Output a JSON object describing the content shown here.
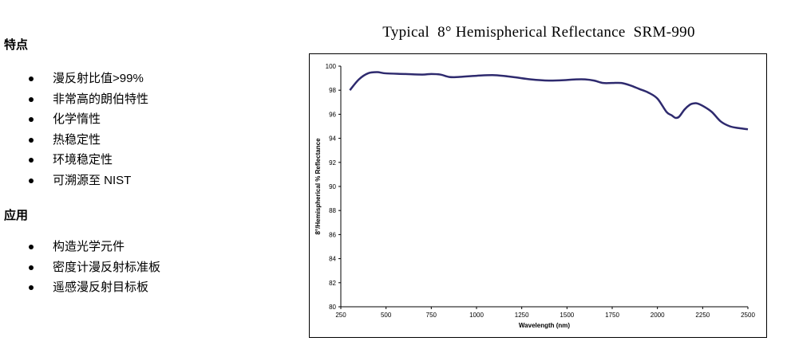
{
  "features": {
    "heading": "特点",
    "items": [
      "漫反射比值>99%",
      "非常高的朗伯特性",
      "化学惰性",
      "热稳定性",
      "环境稳定性",
      "可溯源至 NIST"
    ]
  },
  "applications": {
    "heading": "应用",
    "items": [
      "构造光学元件",
      "密度计漫反射标准板",
      "遥感漫反射目标板"
    ]
  },
  "chart_data": {
    "type": "line",
    "title": "Typical  8° Hemispherical Reflectance  SRM-990",
    "xlabel": "Wavelength (nm)",
    "ylabel": "8°/Hemispherical % Reflectance",
    "xlim": [
      250,
      2500
    ],
    "ylim": [
      80,
      100
    ],
    "xticks": [
      "250",
      "500",
      "750",
      "1000",
      "1250",
      "1500",
      "1750",
      "2000",
      "2250",
      "2500"
    ],
    "yticks": [
      "80",
      "82",
      "84",
      "86",
      "88",
      "90",
      "92",
      "94",
      "96",
      "98",
      "100"
    ],
    "grid": false,
    "line_color": "#2e2a6e",
    "series": [
      {
        "x": [
          300,
          350,
          400,
          450,
          500,
          600,
          700,
          750,
          800,
          850,
          900,
          1000,
          1100,
          1200,
          1300,
          1400,
          1500,
          1550,
          1600,
          1650,
          1700,
          1750,
          1800,
          1850,
          1900,
          1950,
          2000,
          2050,
          2080,
          2100,
          2120,
          2150,
          2180,
          2200,
          2220,
          2250,
          2300,
          2350,
          2400,
          2450,
          2500
        ],
        "y": [
          98.0,
          98.9,
          99.4,
          99.5,
          99.4,
          99.35,
          99.3,
          99.35,
          99.3,
          99.1,
          99.1,
          99.2,
          99.25,
          99.1,
          98.9,
          98.8,
          98.85,
          98.9,
          98.9,
          98.8,
          98.6,
          98.6,
          98.6,
          98.4,
          98.1,
          97.8,
          97.3,
          96.2,
          95.9,
          95.7,
          95.8,
          96.4,
          96.8,
          96.9,
          96.9,
          96.7,
          96.2,
          95.4,
          95.0,
          94.85,
          94.75
        ]
      }
    ]
  }
}
